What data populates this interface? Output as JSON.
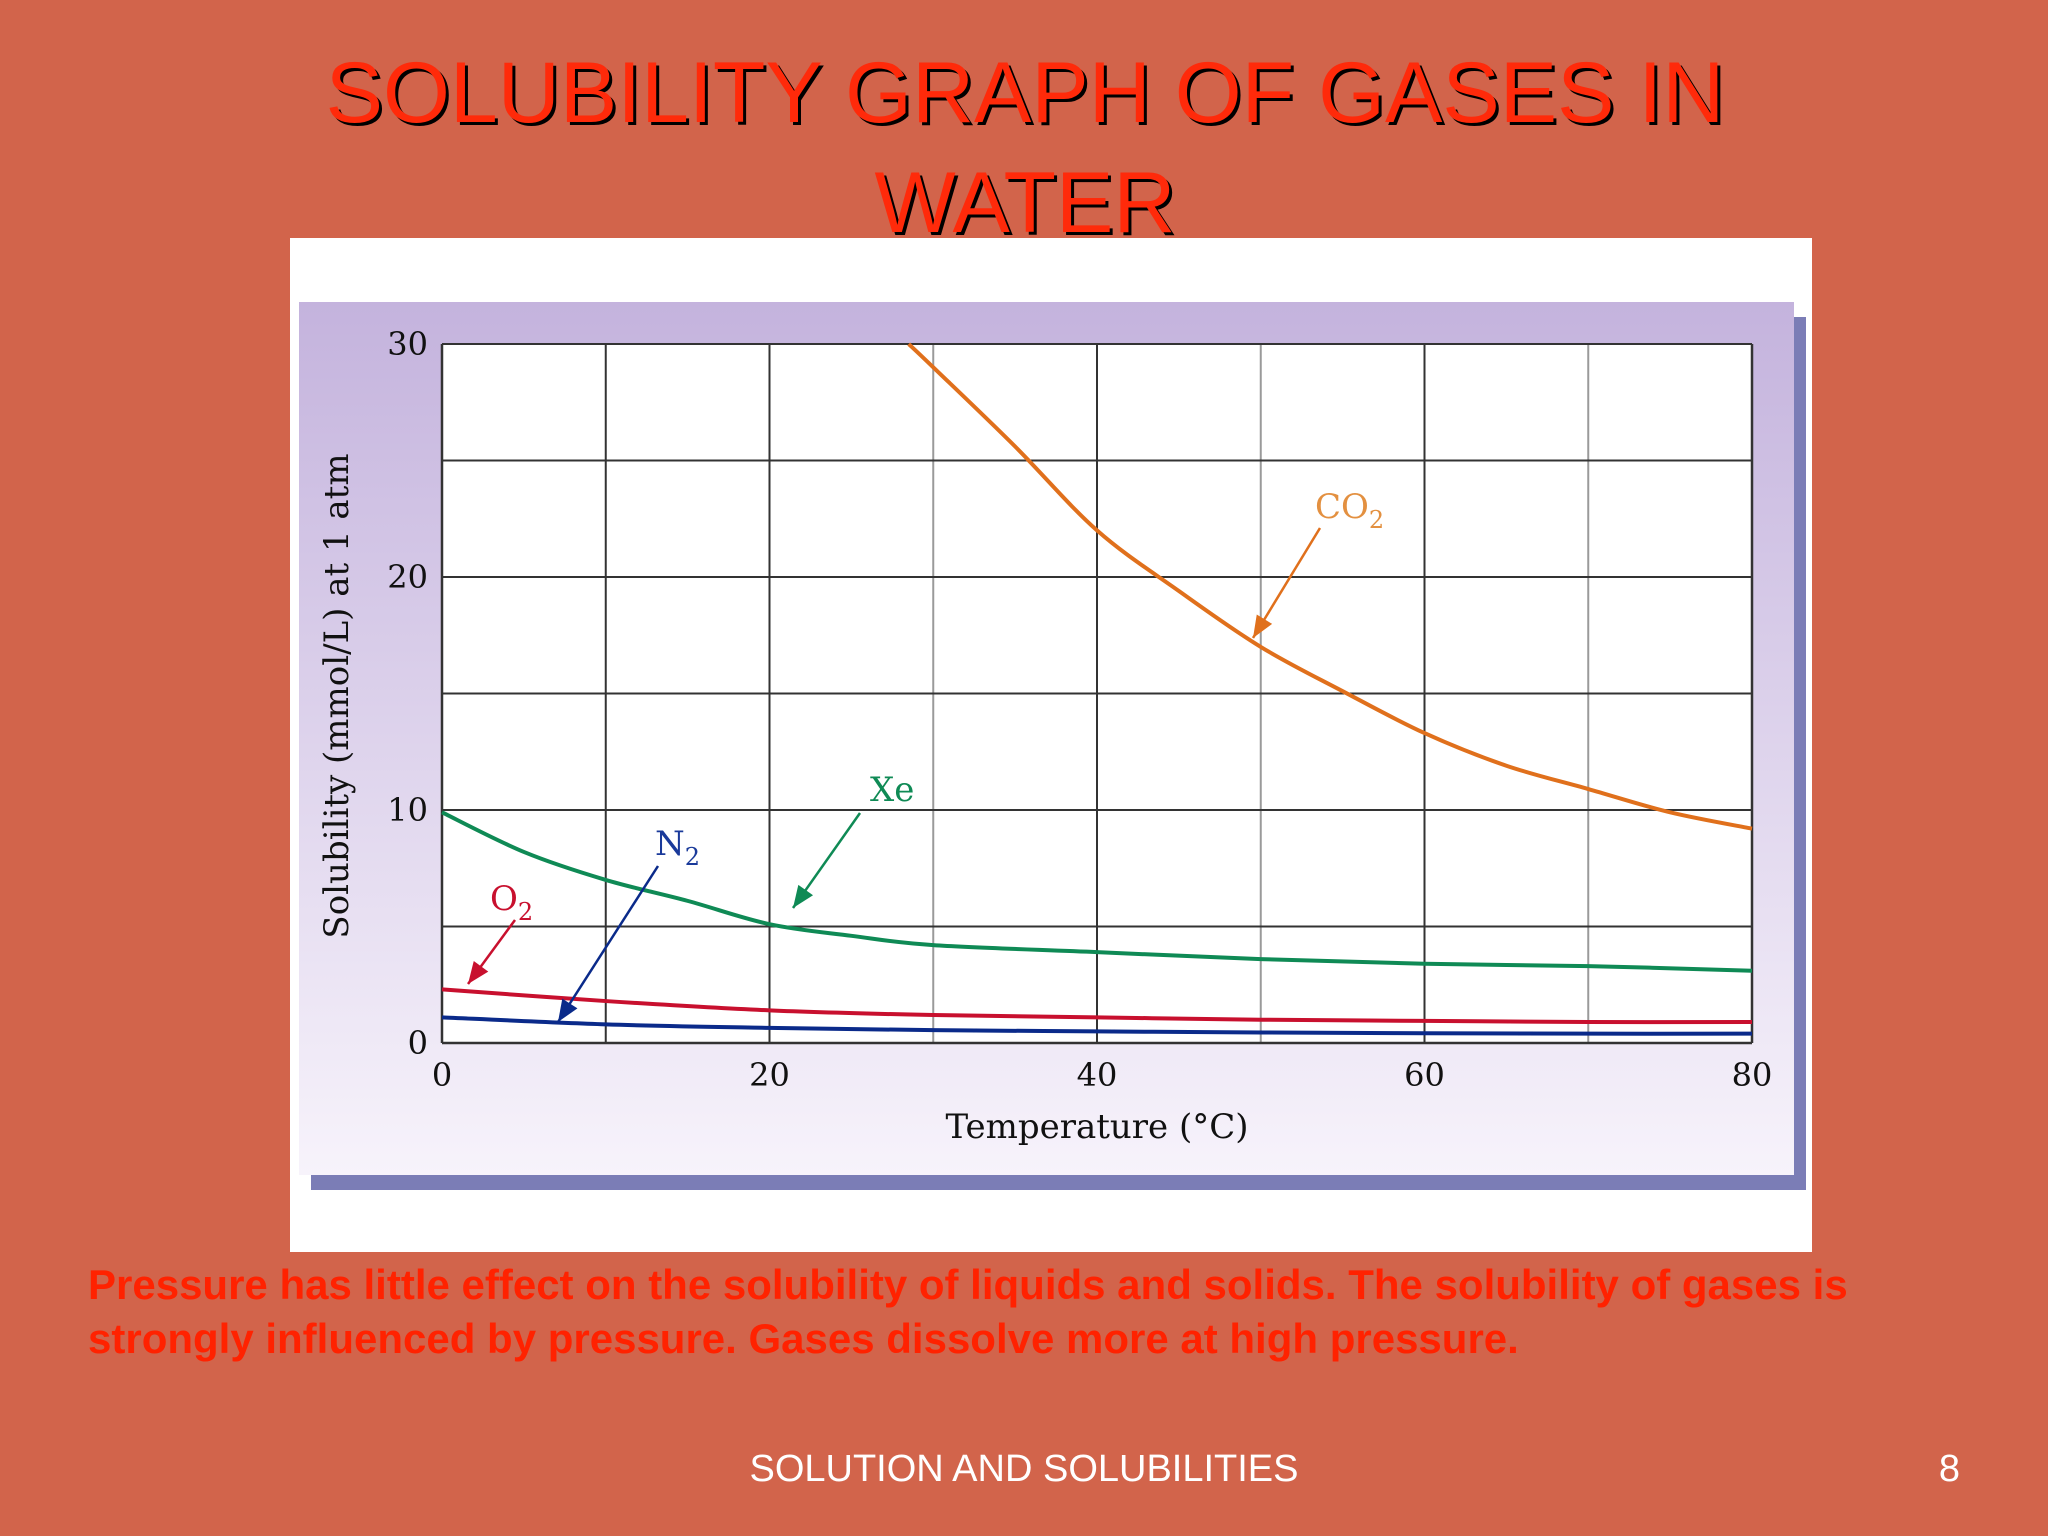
{
  "slide": {
    "title_line1": "SOLUBILITY GRAPH OF GASES IN",
    "title_line2": "WATER",
    "caption_line1": "Pressure has little effect on the solubility of liquids and solids. The solubility of gases is",
    "caption_line2": "strongly influenced by pressure. Gases dissolve more at high pressure.",
    "footer": "SOLUTION AND SOLUBILITIES",
    "page_number": "8"
  },
  "chart_data": {
    "type": "line",
    "title": "",
    "xlabel": "Temperature (°C)",
    "ylabel": "Solubility (mmol/L) at 1 atm",
    "xlim": [
      0,
      80
    ],
    "ylim": [
      0,
      30
    ],
    "xticks": [
      "0",
      "20",
      "40",
      "60",
      "80"
    ],
    "yticks": [
      "0",
      "10",
      "20",
      "30"
    ],
    "grid": true,
    "legend": "inline labels with arrows",
    "series": [
      {
        "name": "CO",
        "name_sub": "2",
        "color": "#e0701c",
        "label_color": "#e39040",
        "x": [
          28.5,
          30,
          35,
          40,
          45,
          50,
          55,
          60,
          65,
          70,
          75,
          80
        ],
        "y": [
          30.0,
          29.0,
          25.6,
          22.0,
          19.4,
          17.0,
          15.1,
          13.3,
          11.9,
          10.9,
          9.9,
          9.2
        ]
      },
      {
        "name": "Xe",
        "name_sub": "",
        "color": "#0f8a55",
        "label_color": "#0f8a55",
        "x": [
          0,
          5,
          10,
          15,
          20,
          25,
          30,
          40,
          50,
          60,
          70,
          80
        ],
        "y": [
          9.9,
          8.2,
          7.0,
          6.1,
          5.1,
          4.6,
          4.2,
          3.9,
          3.6,
          3.4,
          3.3,
          3.1
        ]
      },
      {
        "name": "O",
        "name_sub": "2",
        "color": "#c8102e",
        "label_color": "#c8102e",
        "x": [
          0,
          10,
          20,
          30,
          40,
          50,
          60,
          70,
          80
        ],
        "y": [
          2.3,
          1.8,
          1.4,
          1.2,
          1.1,
          1.0,
          0.95,
          0.9,
          0.9
        ]
      },
      {
        "name": "N",
        "name_sub": "2",
        "color": "#0a2a8a",
        "label_color": "#1a3a9a",
        "x": [
          0,
          10,
          20,
          30,
          40,
          50,
          60,
          70,
          80
        ],
        "y": [
          1.1,
          0.8,
          0.65,
          0.55,
          0.5,
          0.45,
          0.42,
          0.4,
          0.4
        ]
      }
    ]
  }
}
